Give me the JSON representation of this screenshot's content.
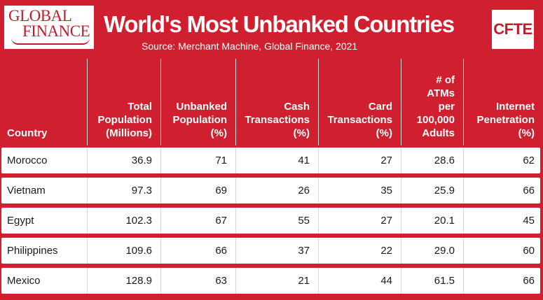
{
  "brand": {
    "left_logo_line1": "GLOBAL",
    "left_logo_line2": "FINANCE",
    "right_logo": "CFTE"
  },
  "title": "World's Most Unbanked Countries",
  "source": "Source: Merchant Machine, Global Finance, 2021",
  "colors": {
    "background": "#d01f2f",
    "row": "#ffffff",
    "text": "#1a1a1a"
  },
  "chart_data": {
    "type": "table",
    "title": "World's Most Unbanked Countries",
    "columns": [
      "Country",
      "Total\nPopulation\n(Millions)",
      "Unbanked\nPopulation\n(%)",
      "Cash\nTransactions\n(%)",
      "Card\nTransactions\n(%)",
      "# of\nATMs\nper\n100,000\nAdults",
      "Internet\nPenetration\n(%)"
    ],
    "rows": [
      [
        "Morocco",
        "36.9",
        "71",
        "41",
        "27",
        "28.6",
        "62"
      ],
      [
        "Vietnam",
        "97.3",
        "69",
        "26",
        "35",
        "25.9",
        "66"
      ],
      [
        "Egypt",
        "102.3",
        "67",
        "55",
        "27",
        "20.1",
        "45"
      ],
      [
        "Philippines",
        "109.6",
        "66",
        "37",
        "22",
        "29.0",
        "60"
      ],
      [
        "Mexico",
        "128.9",
        "63",
        "21",
        "44",
        "61.5",
        "66"
      ]
    ]
  }
}
